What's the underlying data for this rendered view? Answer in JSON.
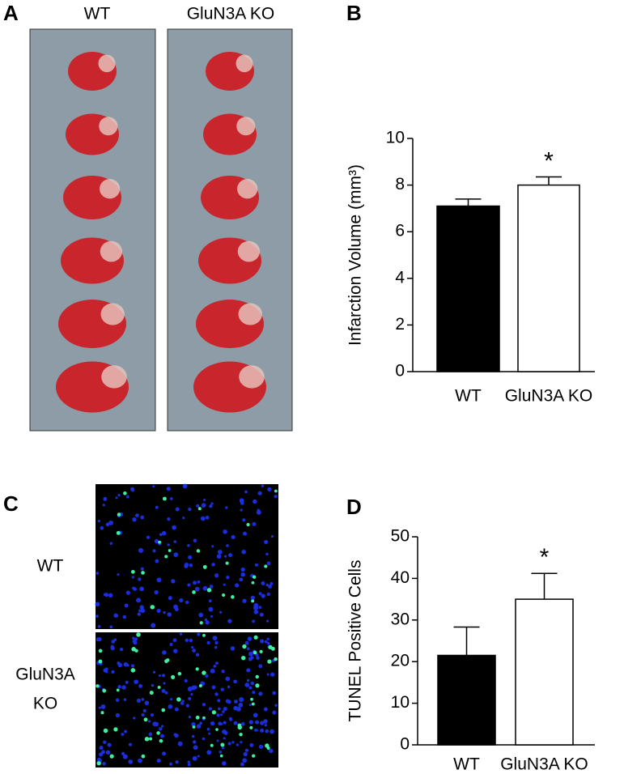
{
  "panel_labels": [
    "A",
    "B",
    "C",
    "D"
  ],
  "image_labels": {
    "top": [
      "WT",
      "GluN3A KO"
    ],
    "wt": "WT",
    "ko": [
      "GluN3A",
      "KO"
    ]
  },
  "chart_data": [
    {
      "type": "bar",
      "y_label": "Infarction Volume (mm³)",
      "categories": [
        "WT",
        "GluN3A KO"
      ],
      "values": [
        7.1,
        8.0
      ],
      "errors": [
        0.3,
        0.35
      ],
      "colors": [
        "#000000",
        "#ffffff"
      ],
      "ylim": [
        0,
        10
      ],
      "yticks": [
        0,
        2,
        4,
        6,
        8,
        10
      ],
      "annotations": [
        {
          "text": "*",
          "category": "GluN3A KO"
        }
      ]
    },
    {
      "type": "bar",
      "y_label": "TUNEL Positive Cells",
      "categories": [
        "WT",
        "GluN3A KO"
      ],
      "values": [
        21.5,
        35
      ],
      "errors": [
        6.8,
        6.2
      ],
      "colors": [
        "#000000",
        "#ffffff"
      ],
      "ylim": [
        0,
        50
      ],
      "yticks": [
        0,
        10,
        20,
        30,
        40,
        50
      ],
      "annotations": [
        {
          "text": "*",
          "category": "GluN3A KO"
        }
      ]
    }
  ]
}
